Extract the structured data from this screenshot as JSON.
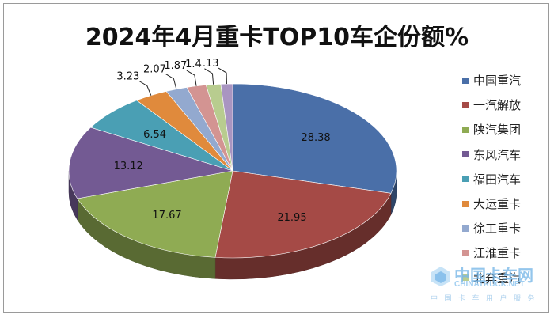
{
  "chart_data": {
    "type": "pie",
    "title": "2024年4月重卡TOP10车企份额%",
    "categories": [
      "中国重汽",
      "一汽解放",
      "陕汽集团",
      "东风汽车",
      "福田汽车",
      "大运重卡",
      "徐工重卡",
      "江淮重卡",
      "北奔重汽",
      ""
    ],
    "values": [
      28.38,
      21.95,
      17.67,
      13.12,
      6.54,
      3.23,
      2.07,
      1.87,
      1.4,
      1.13
    ],
    "labels": [
      "28.38",
      "21.95",
      "17.67",
      "13.12",
      "6.54",
      "3.23",
      "2.07",
      "1.87",
      "1.4",
      "1.13"
    ],
    "colors": [
      "#4a6fa8",
      "#a54a46",
      "#8fab53",
      "#735a93",
      "#4a9fb4",
      "#e08a3c",
      "#93a9cf",
      "#d39492",
      "#b8cc8f",
      "#a995c1"
    ],
    "legend_position": "right",
    "three_d": true
  },
  "watermark": {
    "main": "中国卡车网",
    "english": "CHINATRUCK.NET",
    "sub": "中 国 卡 车 用 户 服 务"
  }
}
